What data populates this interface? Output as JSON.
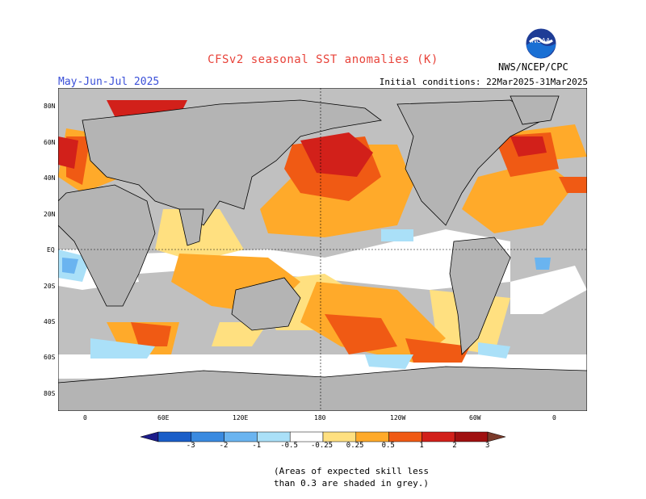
{
  "header": {
    "title": "CFSv2 seasonal SST anomalies (K)",
    "season": "May-Jun-Jul 2025",
    "initial_conditions": "Initial conditions: 22Mar2025-31Mar2025",
    "agency": "NWS/NCEP/CPC",
    "logo_text": "NOAA"
  },
  "map": {
    "lat_labels": [
      "80N",
      "60N",
      "40N",
      "20N",
      "EQ",
      "20S",
      "40S",
      "60S",
      "80S"
    ],
    "lon_labels": [
      "0",
      "60E",
      "120E",
      "180",
      "120W",
      "60W",
      "0"
    ],
    "colors": {
      "land": "#b4b4b4",
      "low_skill": "#c0c0c0",
      "ocean_neutral": "#ffffff",
      "coast": "#000000"
    }
  },
  "colorbar": {
    "labels": [
      "-3",
      "-2",
      "-1",
      "-0.5",
      "-0.25",
      "0.25",
      "0.5",
      "1",
      "2",
      "3"
    ],
    "colors": [
      "#1c1c8a",
      "#1a5ec8",
      "#3a8ae0",
      "#6ab4f0",
      "#aae0f8",
      "#ffffff",
      "#ffe080",
      "#ffaa2a",
      "#f05a14",
      "#d2201a",
      "#a01010",
      "#7a3a2a"
    ]
  },
  "note": {
    "line1": "(Areas of expected skill less",
    "line2": "than 0.3 are shaded in grey.)"
  }
}
